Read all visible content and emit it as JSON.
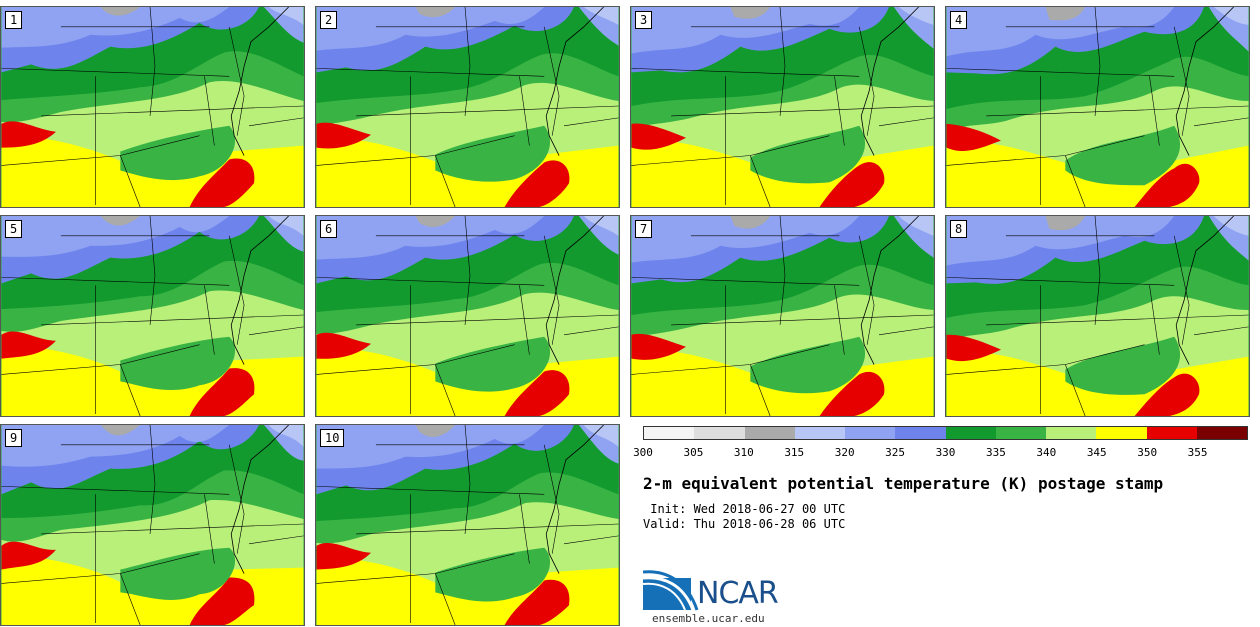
{
  "figure": {
    "title": "2-m equivalent potential temperature (K) postage stamp",
    "init_label": " Init: Wed 2018-06-27 00 UTC",
    "valid_label": "Valid: Thu 2018-06-28 06 UTC",
    "website": "ensemble.ucar.edu",
    "logo_text": "NCAR"
  },
  "members": [
    {
      "label": "1"
    },
    {
      "label": "2"
    },
    {
      "label": "3"
    },
    {
      "label": "4"
    },
    {
      "label": "5"
    },
    {
      "label": "6"
    },
    {
      "label": "7"
    },
    {
      "label": "8"
    },
    {
      "label": "9"
    },
    {
      "label": "10"
    }
  ],
  "colorbar": {
    "ticks": [
      "300",
      "305",
      "310",
      "315",
      "320",
      "325",
      "330",
      "335",
      "340",
      "345",
      "350",
      "355"
    ],
    "colors": [
      "#f4f4f4",
      "#dedede",
      "#aaaaaa",
      "#b8c6f6",
      "#8fa3f2",
      "#6e84ec",
      "#129a2e",
      "#39b444",
      "#b8f07a",
      "#ffff00",
      "#e60000",
      "#7a0000"
    ]
  },
  "map_colors": {
    "k310": "#aaaaaa",
    "k315": "#b8c6f6",
    "k320": "#8fa3f2",
    "k325": "#6e84ec",
    "k330": "#129a2e",
    "k335": "#39b444",
    "k340": "#b8f07a",
    "k345": "#ffff00",
    "k350": "#e60000",
    "boundary": "#000000"
  }
}
